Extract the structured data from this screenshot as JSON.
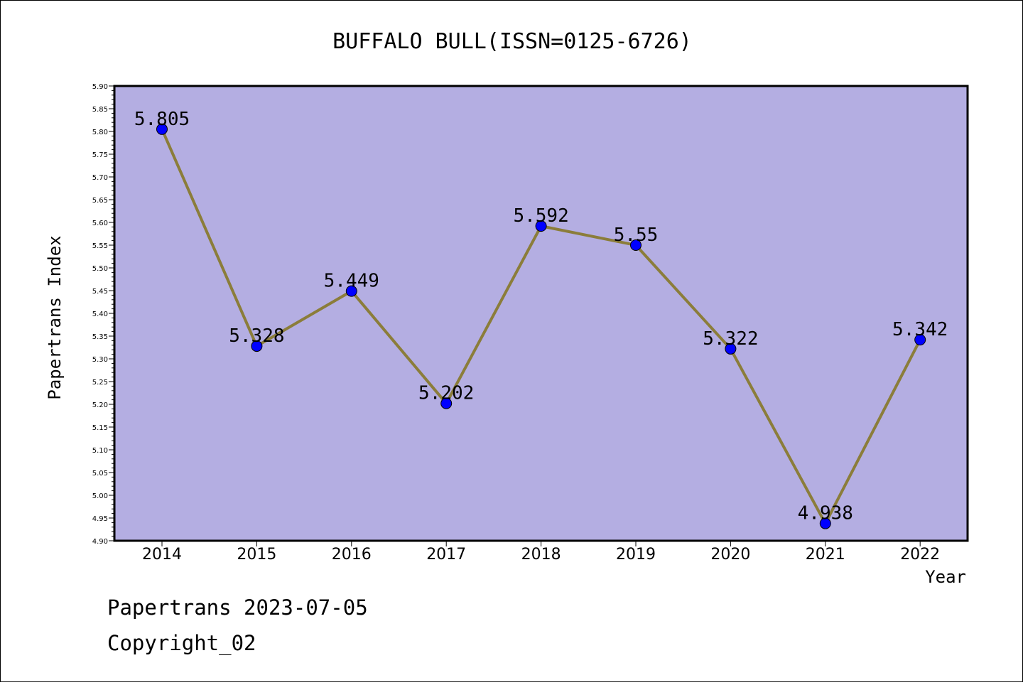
{
  "chart_data": {
    "type": "line",
    "title": "BUFFALO BULL(ISSN=0125-6726)",
    "xlabel": "Year",
    "ylabel": "Papertrans Index",
    "categories": [
      "2014",
      "2015",
      "2016",
      "2017",
      "2018",
      "2019",
      "2020",
      "2021",
      "2022"
    ],
    "series": [
      {
        "values": [
          5.805,
          5.328,
          5.449,
          5.202,
          5.592,
          5.55,
          5.322,
          4.938,
          5.342
        ],
        "labels": [
          "5.805",
          "5.328",
          "5.449",
          "5.202",
          "5.592",
          "5.55",
          "5.322",
          "4.938",
          "5.342"
        ],
        "line_color": "#8B7D3A",
        "marker_color": "#0000FF"
      }
    ],
    "ylim": [
      4.9,
      5.9
    ],
    "yticks": [
      "4.90",
      "4.95",
      "5.00",
      "5.05",
      "5.10",
      "5.15",
      "5.20",
      "5.25",
      "5.30",
      "5.35",
      "5.40",
      "5.45",
      "5.50",
      "5.55",
      "5.60",
      "5.65",
      "5.70",
      "5.75",
      "5.80",
      "5.85",
      "5.90"
    ],
    "plot_background": "#B4AEE2",
    "grid": false,
    "legend": "none"
  },
  "footer": {
    "line1": "Papertrans 2023-07-05",
    "line2": "Copyright_02"
  }
}
